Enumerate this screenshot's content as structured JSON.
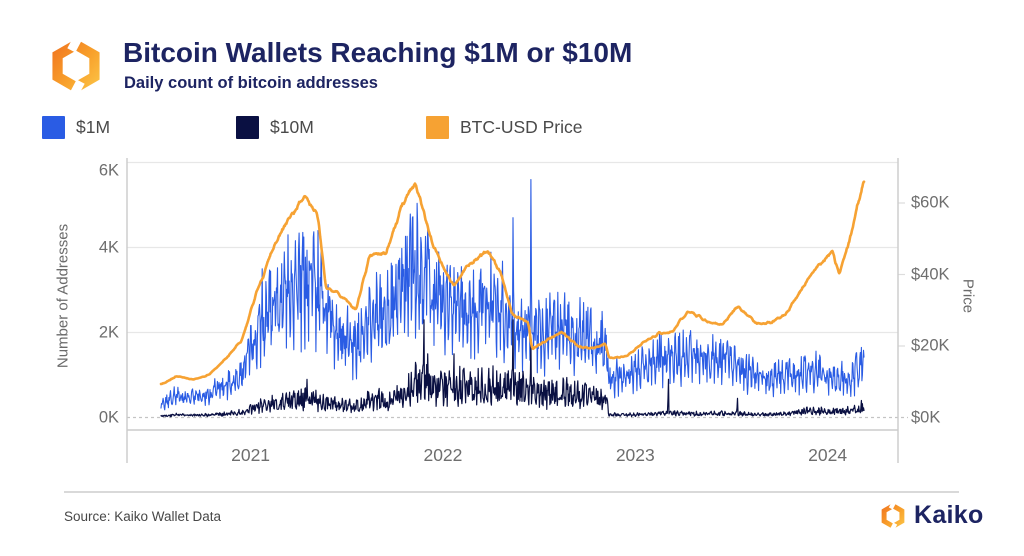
{
  "header": {
    "title": "Bitcoin Wallets Reaching $1M or $10M",
    "subtitle": "Daily count of bitcoin addresses"
  },
  "footer": {
    "source": "Source: Kaiko Wallet Data",
    "brand": "Kaiko"
  },
  "colors": {
    "accent_blue": "#2a5ce4",
    "accent_navy": "#0a1042",
    "accent_orange": "#f6a233",
    "brand_navy": "#1d2462"
  },
  "chart_data": {
    "type": "line",
    "title": "Bitcoin Wallets Reaching $1M or $10M",
    "subtitle": "Daily count of bitcoin addresses",
    "grid": true,
    "legend_position": "top",
    "x_range": {
      "start": "2020-07-15",
      "end": "2024-03-10"
    },
    "x_ticks": [
      {
        "label": "2021",
        "date": "2021-01-01"
      },
      {
        "label": "2022",
        "date": "2022-01-01"
      },
      {
        "label": "2023",
        "date": "2023-01-01"
      },
      {
        "label": "2024",
        "date": "2024-01-01"
      }
    ],
    "y_left": {
      "label": "Number of Addresses",
      "max": 6000,
      "ticks": [
        {
          "label": "0K",
          "value": 0
        },
        {
          "label": "2K",
          "value": 2000
        },
        {
          "label": "4K",
          "value": 4000
        },
        {
          "label": "6K",
          "value": 6000
        }
      ]
    },
    "y_right": {
      "label": "Price",
      "max": 72,
      "ticks": [
        {
          "label": "$0K",
          "value": 0
        },
        {
          "label": "$20K",
          "value": 20
        },
        {
          "label": "$40K",
          "value": 40
        },
        {
          "label": "$60K",
          "value": 60
        }
      ]
    },
    "series": [
      {
        "name": "$1M",
        "key": "m1",
        "axis": "left",
        "color": "#2a5ce4",
        "line_width": 1.1,
        "style": "spiky-daily"
      },
      {
        "name": "$10M",
        "key": "m10",
        "axis": "left",
        "color": "#0a1042",
        "line_width": 1.2,
        "style": "spiky-daily"
      },
      {
        "name": "BTC-USD Price",
        "key": "btc",
        "axis": "right",
        "color": "#f6a233",
        "line_width": 2.6,
        "style": "smooth"
      }
    ],
    "anchors": [
      {
        "date": "2020-07-15",
        "btc": 9.2,
        "m1": 320,
        "m10": 40
      },
      {
        "date": "2020-08-15",
        "btc": 11.6,
        "m1": 540,
        "m10": 62
      },
      {
        "date": "2020-09-15",
        "btc": 10.6,
        "m1": 480,
        "m10": 55
      },
      {
        "date": "2020-10-15",
        "btc": 12.0,
        "m1": 560,
        "m10": 60
      },
      {
        "date": "2020-11-15",
        "btc": 16.5,
        "m1": 780,
        "m10": 85
      },
      {
        "date": "2020-12-15",
        "btc": 21.5,
        "m1": 1020,
        "m10": 120
      },
      {
        "date": "2021-01-15",
        "btc": 36.0,
        "m1": 2100,
        "m10": 260
      },
      {
        "date": "2021-02-15",
        "btc": 48.0,
        "m1": 2700,
        "m10": 330
      },
      {
        "date": "2021-03-15",
        "btc": 56.0,
        "m1": 3000,
        "m10": 380
      },
      {
        "date": "2021-04-14",
        "btc": 62.0,
        "m1": 3300,
        "m10": 430
      },
      {
        "date": "2021-05-08",
        "btc": 57.0,
        "m1": 3100,
        "m10": 400
      },
      {
        "date": "2021-05-24",
        "btc": 36.0,
        "m1": 2700,
        "m10": 330
      },
      {
        "date": "2021-06-15",
        "btc": 35.0,
        "m1": 2100,
        "m10": 280
      },
      {
        "date": "2021-07-20",
        "btc": 30.0,
        "m1": 1600,
        "m10": 250
      },
      {
        "date": "2021-08-15",
        "btc": 45.5,
        "m1": 2500,
        "m10": 420
      },
      {
        "date": "2021-09-15",
        "btc": 46.0,
        "m1": 2400,
        "m10": 400
      },
      {
        "date": "2021-10-15",
        "btc": 59.0,
        "m1": 3000,
        "m10": 600
      },
      {
        "date": "2021-11-09",
        "btc": 66.0,
        "m1": 3600,
        "m10": 850
      },
      {
        "date": "2021-12-15",
        "btc": 47.5,
        "m1": 3000,
        "m10": 750
      },
      {
        "date": "2022-01-22",
        "btc": 36.5,
        "m1": 2550,
        "m10": 760
      },
      {
        "date": "2022-02-15",
        "btc": 42.5,
        "m1": 2500,
        "m10": 700
      },
      {
        "date": "2022-03-28",
        "btc": 46.5,
        "m1": 2800,
        "m10": 780
      },
      {
        "date": "2022-04-20",
        "btc": 40.5,
        "m1": 2650,
        "m10": 700
      },
      {
        "date": "2022-05-12",
        "btc": 29.0,
        "m1": 2400,
        "m10": 720
      },
      {
        "date": "2022-06-12",
        "btc": 26.5,
        "m1": 2150,
        "m10": 650
      },
      {
        "date": "2022-06-19",
        "btc": 19.0,
        "m1": 2100,
        "m10": 640
      },
      {
        "date": "2022-07-15",
        "btc": 21.5,
        "m1": 2000,
        "m10": 560
      },
      {
        "date": "2022-08-14",
        "btc": 24.0,
        "m1": 2200,
        "m10": 620
      },
      {
        "date": "2022-09-15",
        "btc": 19.8,
        "m1": 1950,
        "m10": 520
      },
      {
        "date": "2022-10-15",
        "btc": 19.3,
        "m1": 1900,
        "m10": 540
      },
      {
        "date": "2022-11-06",
        "btc": 20.8,
        "m1": 1700,
        "m10": 450
      },
      {
        "date": "2022-11-12",
        "btc": 16.6,
        "m1": 950,
        "m10": 70
      },
      {
        "date": "2022-12-15",
        "btc": 17.0,
        "m1": 1000,
        "m10": 65
      },
      {
        "date": "2023-01-15",
        "btc": 20.8,
        "m1": 1200,
        "m10": 75
      },
      {
        "date": "2023-02-15",
        "btc": 23.5,
        "m1": 1400,
        "m10": 85
      },
      {
        "date": "2023-03-12",
        "btc": 24.0,
        "m1": 1400,
        "m10": 100
      },
      {
        "date": "2023-04-12",
        "btc": 30.0,
        "m1": 1500,
        "m10": 95
      },
      {
        "date": "2023-05-15",
        "btc": 27.0,
        "m1": 1300,
        "m10": 90
      },
      {
        "date": "2023-06-15",
        "btc": 26.0,
        "m1": 1400,
        "m10": 100
      },
      {
        "date": "2023-07-13",
        "btc": 31.0,
        "m1": 1250,
        "m10": 95
      },
      {
        "date": "2023-08-20",
        "btc": 26.3,
        "m1": 1000,
        "m10": 72
      },
      {
        "date": "2023-09-15",
        "btc": 26.5,
        "m1": 950,
        "m10": 70
      },
      {
        "date": "2023-10-15",
        "btc": 29.0,
        "m1": 1000,
        "m10": 90
      },
      {
        "date": "2023-11-15",
        "btc": 36.5,
        "m1": 1050,
        "m10": 140
      },
      {
        "date": "2023-12-15",
        "btc": 42.8,
        "m1": 1100,
        "m10": 170
      },
      {
        "date": "2024-01-11",
        "btc": 46.5,
        "m1": 950,
        "m10": 150
      },
      {
        "date": "2024-01-23",
        "btc": 39.8,
        "m1": 930,
        "m10": 145
      },
      {
        "date": "2024-02-15",
        "btc": 51.5,
        "m1": 1000,
        "m10": 165
      },
      {
        "date": "2024-03-05",
        "btc": 63.5,
        "m1": 1150,
        "m10": 200
      },
      {
        "date": "2024-03-10",
        "btc": 66.0,
        "m1": 1250,
        "m10": 210
      }
    ],
    "spikes": [
      {
        "series": "m1",
        "date": "2021-01-23",
        "value": 3500
      },
      {
        "series": "m1",
        "date": "2021-03-13",
        "value": 4300
      },
      {
        "series": "m1",
        "date": "2021-05-09",
        "value": 4400
      },
      {
        "series": "m1",
        "date": "2021-11-04",
        "value": 4700
      },
      {
        "series": "m1",
        "date": "2021-12-03",
        "value": 4500
      },
      {
        "series": "m1",
        "date": "2022-05-14",
        "value": 4700
      },
      {
        "series": "m1",
        "date": "2022-06-17",
        "value": 5600
      },
      {
        "series": "m1",
        "date": "2023-02-16",
        "value": 2000
      },
      {
        "series": "m1",
        "date": "2023-05-28",
        "value": 1950
      },
      {
        "series": "m1",
        "date": "2024-03-05",
        "value": 1650
      },
      {
        "series": "m10",
        "date": "2021-04-18",
        "value": 900
      },
      {
        "series": "m10",
        "date": "2021-11-26",
        "value": 2300
      },
      {
        "series": "m10",
        "date": "2021-12-03",
        "value": 1500
      },
      {
        "series": "m10",
        "date": "2022-01-22",
        "value": 1500
      },
      {
        "series": "m10",
        "date": "2022-05-14",
        "value": 2300
      },
      {
        "series": "m10",
        "date": "2022-06-17",
        "value": 1800
      },
      {
        "series": "m10",
        "date": "2023-03-05",
        "value": 900
      },
      {
        "series": "m10",
        "date": "2023-07-14",
        "value": 450
      },
      {
        "series": "m10",
        "date": "2024-03-05",
        "value": 400
      }
    ]
  }
}
